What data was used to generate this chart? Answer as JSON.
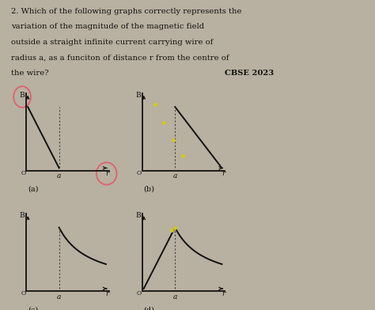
{
  "title_lines": [
    "2. Which of the following graphs correctly represents the",
    "variation of the magnitude of the magnetic field",
    "outside a straight infinite current carrying wire of",
    "radius a, as a funciton of distance r from the centre of",
    "the wire?"
  ],
  "cbse": "CBSE 2023",
  "bg_color": "#b8b0a0",
  "ax_color": "#111111",
  "curve_color": "#111111",
  "dot_line_color": "#444444",
  "annotation_color": "#e06070",
  "subplot_labels": [
    "(a)",
    "(b)",
    "(c)",
    "(d)"
  ]
}
